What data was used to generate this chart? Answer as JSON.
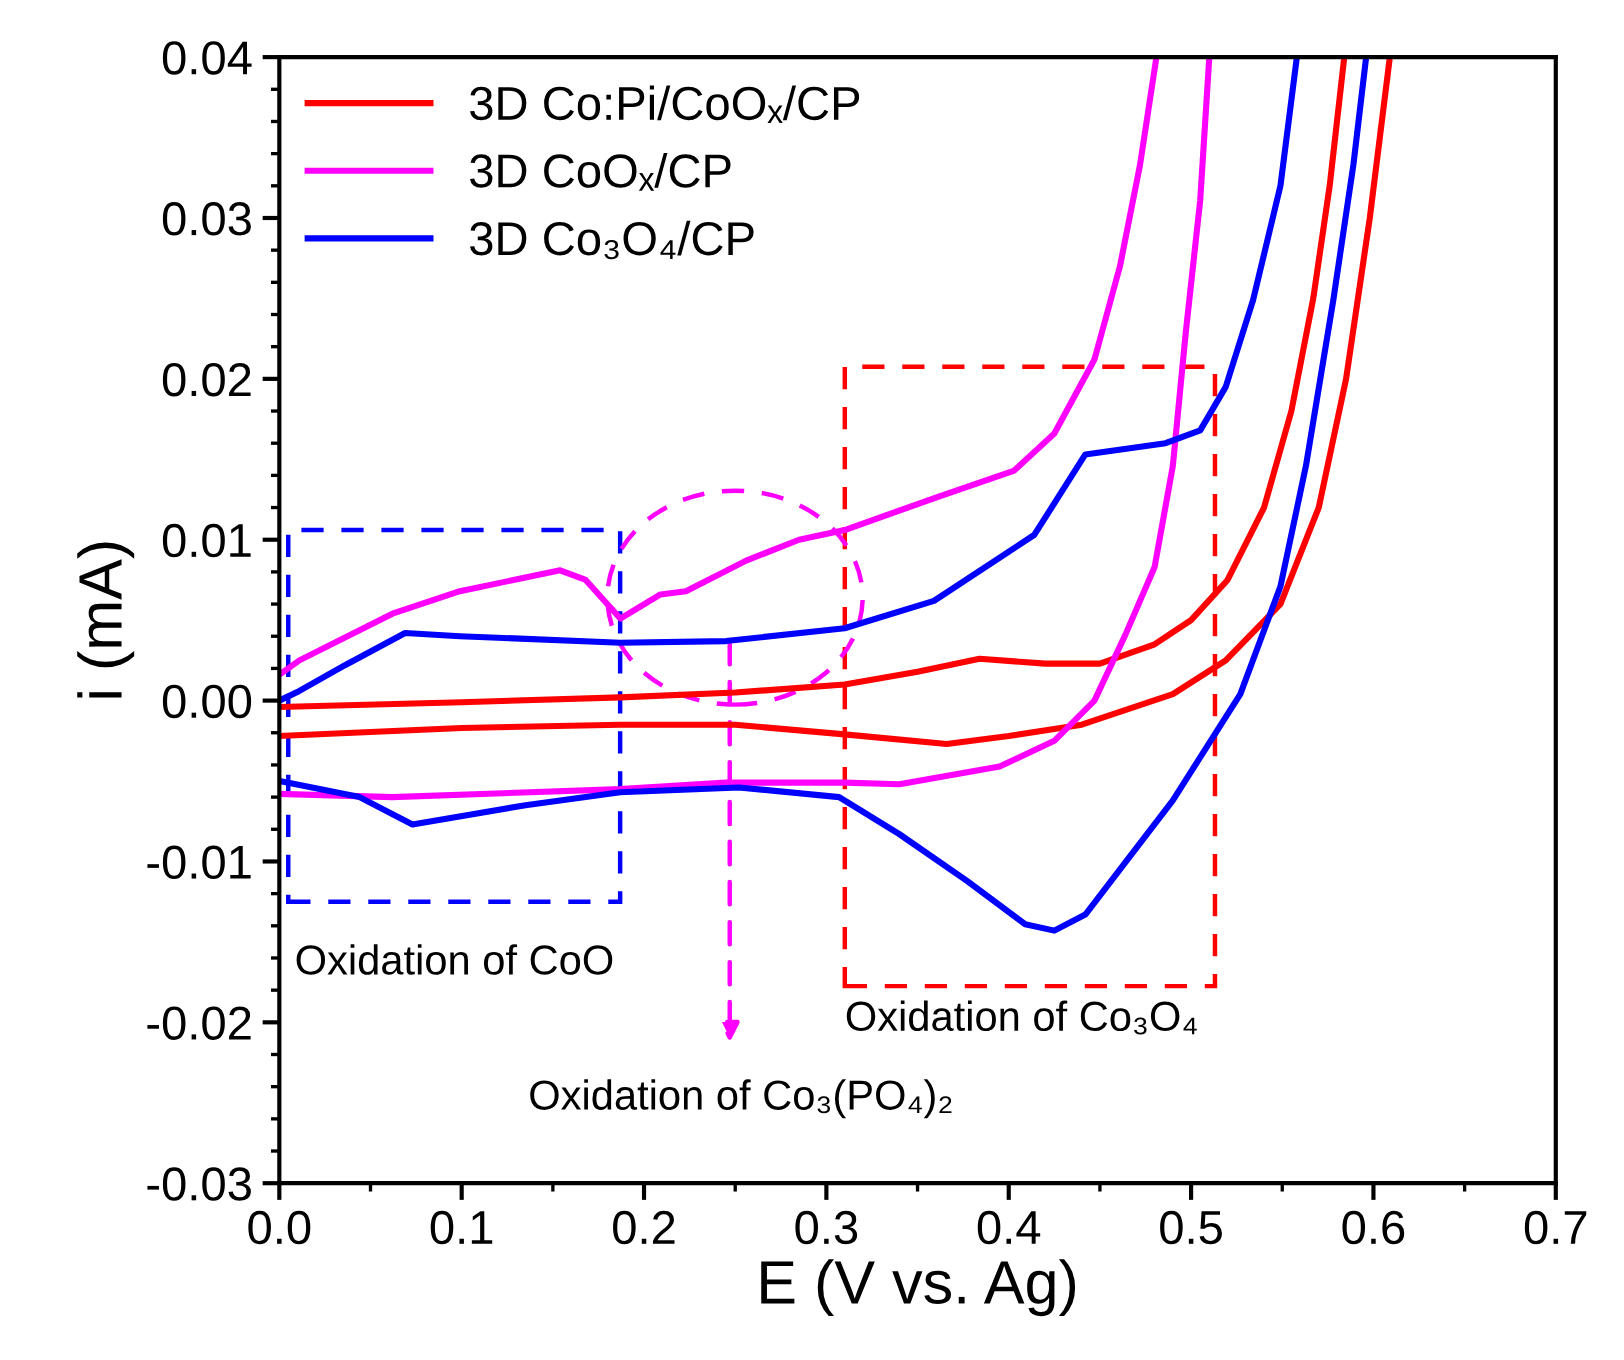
{
  "chart_data": {
    "type": "line",
    "xlabel": "E (V vs. Ag)",
    "ylabel": "i (mA)",
    "xlim": [
      0.0,
      0.7
    ],
    "ylim": [
      -0.03,
      0.04
    ],
    "xticks": [
      {
        "value": 0,
        "label": "0.0"
      },
      0.1,
      0.2,
      0.3,
      0.4,
      0.5,
      0.6,
      0.7
    ],
    "yticks": [
      {
        "value": -0.03,
        "label": "-0.03"
      },
      {
        "value": -0.02,
        "label": "-0.02"
      },
      {
        "value": -0.01,
        "label": "-0.01"
      },
      {
        "value": 0,
        "label": "0.00"
      },
      {
        "value": 0.01,
        "label": "0.01"
      },
      {
        "value": 0.02,
        "label": "0.02"
      },
      {
        "value": 0.03,
        "label": "0.03"
      },
      {
        "value": 0.04,
        "label": "0.04"
      }
    ],
    "grid": false,
    "legend": "top left",
    "line_style": "solid",
    "marker": "none",
    "series": [
      {
        "name": "3D Co:Pi/CoOₓ/CP",
        "color": "#ff0000",
        "x": [
          0.0,
          0.1,
          0.187,
          0.25,
          0.31,
          0.35,
          0.384,
          0.42,
          0.45,
          0.48,
          0.5,
          0.52,
          0.54,
          0.555,
          0.567,
          0.576,
          0.584,
          null,
          0.609,
          0.598,
          0.585,
          0.57,
          0.549,
          0.519,
          0.49,
          0.44,
          0.4,
          0.366,
          0.31,
          0.25,
          0.187,
          0.1,
          0.0
        ],
        "values": [
          -0.0004,
          -0.0001,
          0.0002,
          0.0005,
          0.001,
          0.0018,
          0.0026,
          0.0023,
          0.0023,
          0.0035,
          0.005,
          0.0075,
          0.012,
          0.018,
          0.025,
          0.032,
          0.04,
          null,
          0.04,
          0.03,
          0.02,
          0.012,
          0.006,
          0.0025,
          0.0004,
          -0.0015,
          -0.0022,
          -0.0027,
          -0.0021,
          -0.0015,
          -0.0015,
          -0.0017,
          -0.0022
        ]
      },
      {
        "name": "3D CoOₓ/CP",
        "color": "#ff00ff",
        "x": [
          0.0,
          0.011,
          0.062,
          0.099,
          0.154,
          0.168,
          0.187,
          0.209,
          0.223,
          0.256,
          0.285,
          0.31,
          0.362,
          0.403,
          0.425,
          0.447,
          0.461,
          0.472,
          0.481,
          null,
          0.51,
          0.505,
          0.497,
          0.49,
          0.48,
          0.464,
          0.447,
          0.425,
          0.395,
          0.34,
          0.31,
          0.245,
          0.187,
          0.062,
          0.0
        ],
        "values": [
          0.0016,
          0.0025,
          0.0054,
          0.0068,
          0.0081,
          0.0075,
          0.0051,
          0.0066,
          0.0068,
          0.0087,
          0.01,
          0.0106,
          0.0127,
          0.0143,
          0.0166,
          0.0212,
          0.027,
          0.0333,
          0.04,
          null,
          0.04,
          0.0311,
          0.0228,
          0.0146,
          0.0083,
          0.0041,
          0.0,
          -0.0025,
          -0.0041,
          -0.0052,
          -0.0051,
          -0.0051,
          -0.0055,
          -0.006,
          -0.0058
        ]
      },
      {
        "name": "3D Co₃O₄/CP",
        "color": "#0000ff",
        "x": [
          0.0,
          0.011,
          0.036,
          0.069,
          0.099,
          0.187,
          0.245,
          0.31,
          0.359,
          0.414,
          0.442,
          0.486,
          0.505,
          0.519,
          0.534,
          0.549,
          0.558,
          null,
          0.596,
          0.589,
          0.578,
          0.563,
          0.549,
          0.527,
          0.49,
          0.442,
          0.425,
          0.409,
          0.377,
          0.34,
          0.307,
          0.252,
          0.187,
          0.135,
          0.073,
          0.044,
          0.0
        ],
        "values": [
          0.0,
          0.0006,
          0.0022,
          0.0042,
          0.004,
          0.0036,
          0.0037,
          0.0045,
          0.0062,
          0.0103,
          0.0153,
          0.016,
          0.0168,
          0.0195,
          0.0249,
          0.032,
          0.04,
          null,
          0.04,
          0.0333,
          0.0249,
          0.0146,
          0.0071,
          0.0004,
          -0.0062,
          -0.0133,
          -0.0143,
          -0.0139,
          -0.0112,
          -0.0083,
          -0.006,
          -0.0054,
          -0.0057,
          -0.0065,
          -0.0077,
          -0.006,
          -0.005
        ]
      }
    ],
    "annotations": [
      "Oxidation of CoO",
      "Oxidation of Co₃O₄",
      {
        "text": "Oxidation of Co₃(PO₄)₂",
        "x": 0.247,
        "y": 0.004
      }
    ]
  }
}
